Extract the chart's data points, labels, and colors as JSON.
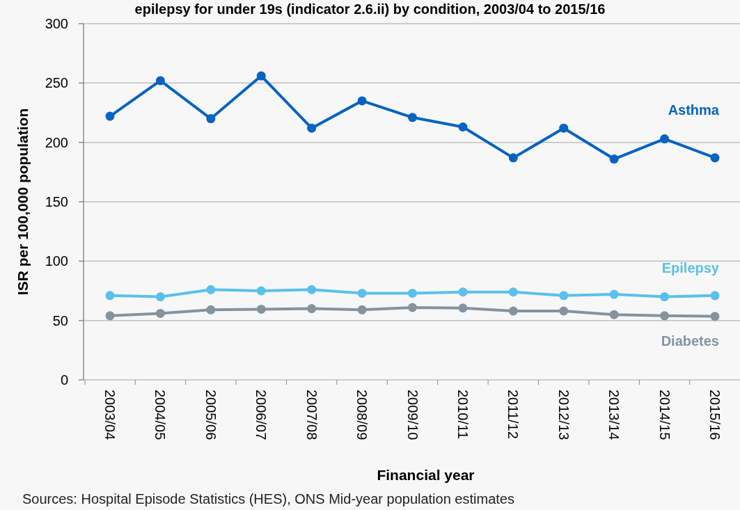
{
  "chart_data": {
    "type": "line",
    "title": "epilepsy for under 19s (indicator 2.6.ii) by condition, 2003/04 to 2015/16",
    "xlabel": "Financial year",
    "ylabel": "ISR per 100,000 population",
    "categories": [
      "2003/04",
      "2004/05",
      "2005/06",
      "2006/07",
      "2007/08",
      "2008/09",
      "2009/10",
      "2010/11",
      "2011/12",
      "2012/13",
      "2013/14",
      "2014/15",
      "2015/16"
    ],
    "series": [
      {
        "name": "Asthma",
        "color": "#0563c1",
        "values": [
          222,
          252,
          220,
          256,
          212,
          235,
          221,
          213,
          187,
          212,
          186,
          203,
          187
        ]
      },
      {
        "name": "Epilepsy",
        "color": "#5bc0eb",
        "values": [
          71,
          70,
          76,
          75,
          76,
          73,
          73,
          74,
          74,
          71,
          72,
          70,
          71
        ]
      },
      {
        "name": "Diabetes",
        "color": "#8593a0",
        "values": [
          54,
          56,
          59,
          59.5,
          60,
          59,
          61,
          60.5,
          58,
          58,
          55,
          54,
          53.5
        ]
      }
    ],
    "ylim": [
      0,
      300
    ],
    "yticks": [
      0,
      50,
      100,
      150,
      200,
      250,
      300
    ],
    "grid": "y",
    "marker": "circle",
    "legend": "right",
    "annotations": [
      "Sources: Hospital Episode Statistics (HES), ONS Mid-year population estimates"
    ]
  }
}
